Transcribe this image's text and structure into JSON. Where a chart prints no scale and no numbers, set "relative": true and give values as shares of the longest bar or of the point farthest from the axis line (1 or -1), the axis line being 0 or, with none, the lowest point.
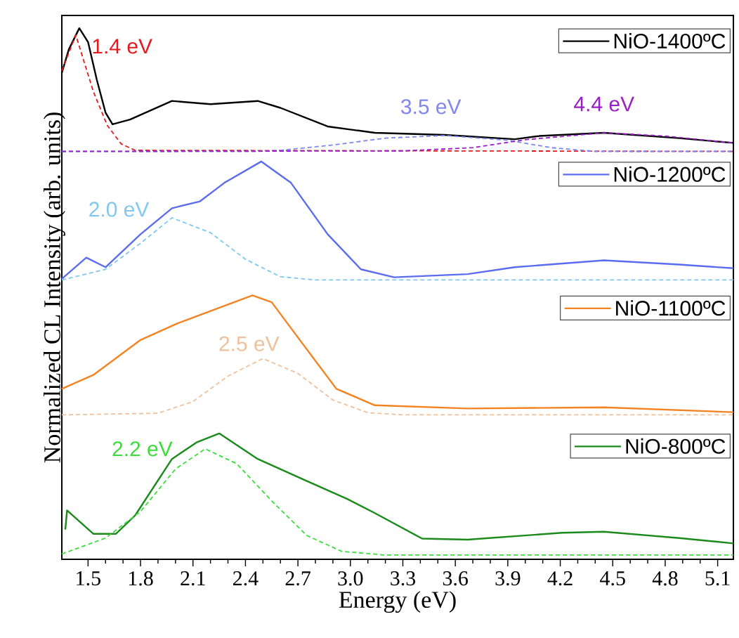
{
  "chart_data": {
    "type": "line",
    "relative": true,
    "xlabel": "Energy (eV)",
    "ylabel": "Normalized CL Intensity (arb. units)",
    "xlim": [
      1.35,
      5.19
    ],
    "xticks": [
      1.5,
      1.8,
      2.1,
      2.4,
      2.7,
      {
        "value": 3.0,
        "label": "3.0"
      },
      3.3,
      3.6,
      3.9,
      4.2,
      4.5,
      4.8,
      5.1
    ],
    "tick_labels": "x",
    "legend": "right",
    "line_style": "solid",
    "marker": "none",
    "series": [
      {
        "name": "NiO-1400ºC",
        "color": "#000000",
        "x": [
          1.35,
          1.39,
          1.45,
          1.5,
          1.55,
          1.6,
          1.64,
          1.74,
          1.98,
          2.2,
          2.47,
          2.6,
          2.87,
          3.14,
          3.54,
          3.94,
          4.08,
          4.45,
          4.88,
          5.19
        ],
        "values": [
          0.916,
          0.96,
          1.0,
          0.974,
          0.903,
          0.841,
          0.819,
          0.828,
          0.863,
          0.857,
          0.863,
          0.85,
          0.815,
          0.803,
          0.799,
          0.791,
          0.797,
          0.803,
          0.793,
          0.784
        ]
      },
      {
        "name": "1.4 eV",
        "color": "#e41a1c",
        "line_style": "dashed",
        "x": [
          1.35,
          1.43,
          1.53,
          1.61,
          1.69,
          1.77,
          5.19
        ],
        "values": [
          0.92,
          0.987,
          0.881,
          0.817,
          0.782,
          0.77,
          0.768
        ]
      },
      {
        "name": "3.5 eV",
        "color": "#7f86f0",
        "line_style": "dashed",
        "x": [
          1.35,
          2.46,
          2.6,
          2.9,
          3.2,
          3.54,
          3.9,
          4.15,
          4.4,
          5.19
        ],
        "values": [
          0.768,
          0.768,
          0.77,
          0.78,
          0.793,
          0.798,
          0.789,
          0.775,
          0.768,
          0.768
        ]
      },
      {
        "name": "4.4 eV",
        "color": "#9a1fc8",
        "line_style": "dashed",
        "x": [
          1.35,
          3.3,
          3.7,
          4.0,
          4.45,
          4.8,
          5.19
        ],
        "values": [
          0.768,
          0.769,
          0.775,
          0.79,
          0.803,
          0.797,
          0.784
        ]
      },
      {
        "name": "NiO-1200ºC",
        "color": "#5a6cf0",
        "x": [
          1.35,
          1.49,
          1.6,
          1.8,
          1.98,
          2.14,
          2.28,
          2.49,
          2.66,
          2.87,
          3.06,
          3.25,
          3.67,
          3.94,
          4.45,
          4.88,
          5.19
        ],
        "values": [
          0.528,
          0.568,
          0.55,
          0.612,
          0.661,
          0.674,
          0.709,
          0.749,
          0.709,
          0.612,
          0.546,
          0.531,
          0.537,
          0.55,
          0.563,
          0.555,
          0.548
        ]
      },
      {
        "name": "2.0 eV",
        "color": "#80c8f0",
        "line_style": "dashed",
        "x": [
          1.35,
          1.6,
          1.8,
          1.98,
          2.2,
          2.4,
          2.6,
          2.8,
          5.19
        ],
        "values": [
          0.526,
          0.546,
          0.595,
          0.643,
          0.615,
          0.565,
          0.532,
          0.526,
          0.526
        ]
      },
      {
        "name": "NiO-1100ºC",
        "color": "#f58220",
        "x": [
          1.35,
          1.53,
          1.8,
          2.01,
          2.23,
          2.44,
          2.55,
          2.74,
          2.92,
          3.14,
          3.67,
          4.45,
          5.19
        ],
        "values": [
          0.321,
          0.347,
          0.413,
          0.444,
          0.471,
          0.497,
          0.484,
          0.4,
          0.321,
          0.29,
          0.284,
          0.286,
          0.277
        ]
      },
      {
        "name": "2.5 eV",
        "color": "#f0c09a",
        "line_style": "dashed",
        "x": [
          1.35,
          1.9,
          2.1,
          2.3,
          2.5,
          2.7,
          2.9,
          3.1,
          3.3,
          5.19
        ],
        "values": [
          0.272,
          0.275,
          0.297,
          0.345,
          0.378,
          0.35,
          0.3,
          0.276,
          0.272,
          0.272
        ]
      },
      {
        "name": "NiO-800ºC",
        "color": "#1a8a1a",
        "x": [
          1.37,
          1.38,
          1.53,
          1.66,
          1.77,
          1.98,
          2.12,
          2.25,
          2.47,
          2.74,
          2.98,
          3.14,
          3.41,
          3.67,
          4.21,
          4.45,
          4.88,
          5.19
        ],
        "values": [
          0.056,
          0.092,
          0.048,
          0.048,
          0.083,
          0.189,
          0.22,
          0.237,
          0.189,
          0.149,
          0.114,
          0.087,
          0.039,
          0.037,
          0.05,
          0.052,
          0.04,
          0.03
        ]
      },
      {
        "name": "2.2 eV",
        "color": "#3ade3a",
        "line_style": "dashed",
        "x": [
          1.35,
          1.6,
          1.8,
          2.0,
          2.17,
          2.35,
          2.55,
          2.75,
          2.95,
          3.2,
          5.19
        ],
        "values": [
          0.01,
          0.04,
          0.09,
          0.17,
          0.208,
          0.18,
          0.11,
          0.045,
          0.015,
          0.008,
          0.008
        ]
      }
    ]
  }
}
